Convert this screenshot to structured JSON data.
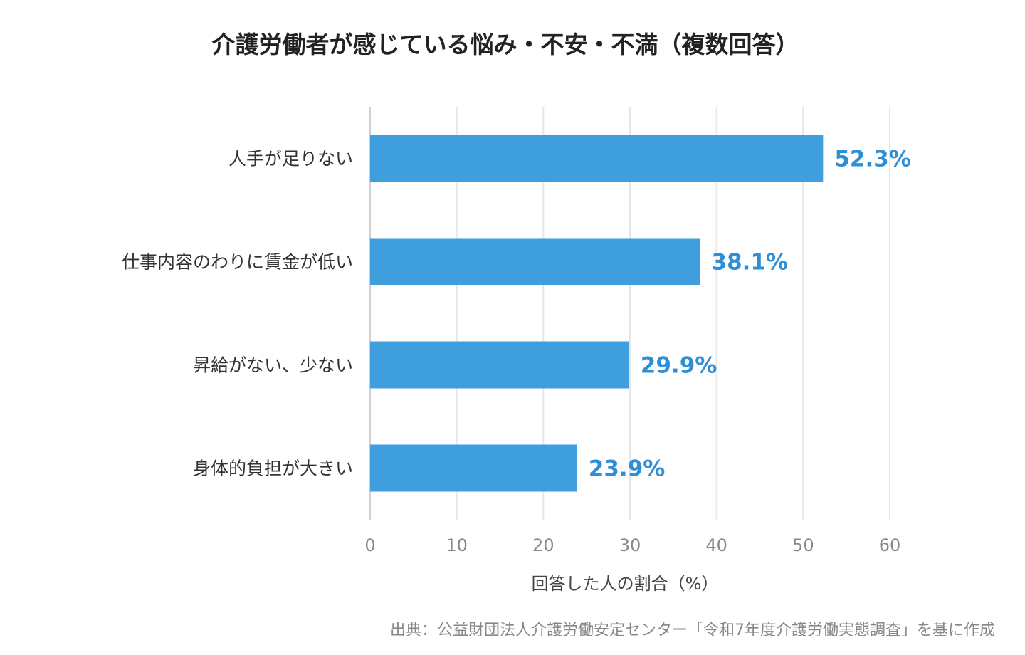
{
  "chart_data": {
    "type": "bar",
    "orientation": "horizontal",
    "title": "介護労働者が感じている悩み・不安・不満（複数回答）",
    "categories": [
      "人手が足りない",
      "仕事内容のわりに賃金が低い",
      "昇給がない、少ない",
      "身体的負担が大きい"
    ],
    "values": [
      52.3,
      38.1,
      29.9,
      23.9
    ],
    "value_labels": [
      "52.3%",
      "38.1%",
      "29.9%",
      "23.9%"
    ],
    "xlabel": "回答した人の割合（%）",
    "ylabel": "",
    "xlim": [
      0,
      60
    ],
    "xticks": [
      0,
      10,
      20,
      30,
      40,
      50,
      60
    ],
    "xtick_labels": [
      "0",
      "10",
      "20",
      "30",
      "40",
      "50",
      "60"
    ],
    "grid": "vertical",
    "bar_color": "#3f9fde",
    "label_color": "#2f8fd6",
    "source": "出典：公益財団法人介護労働安定センター「令和7年度介護労働実態調査」を基に作成"
  }
}
